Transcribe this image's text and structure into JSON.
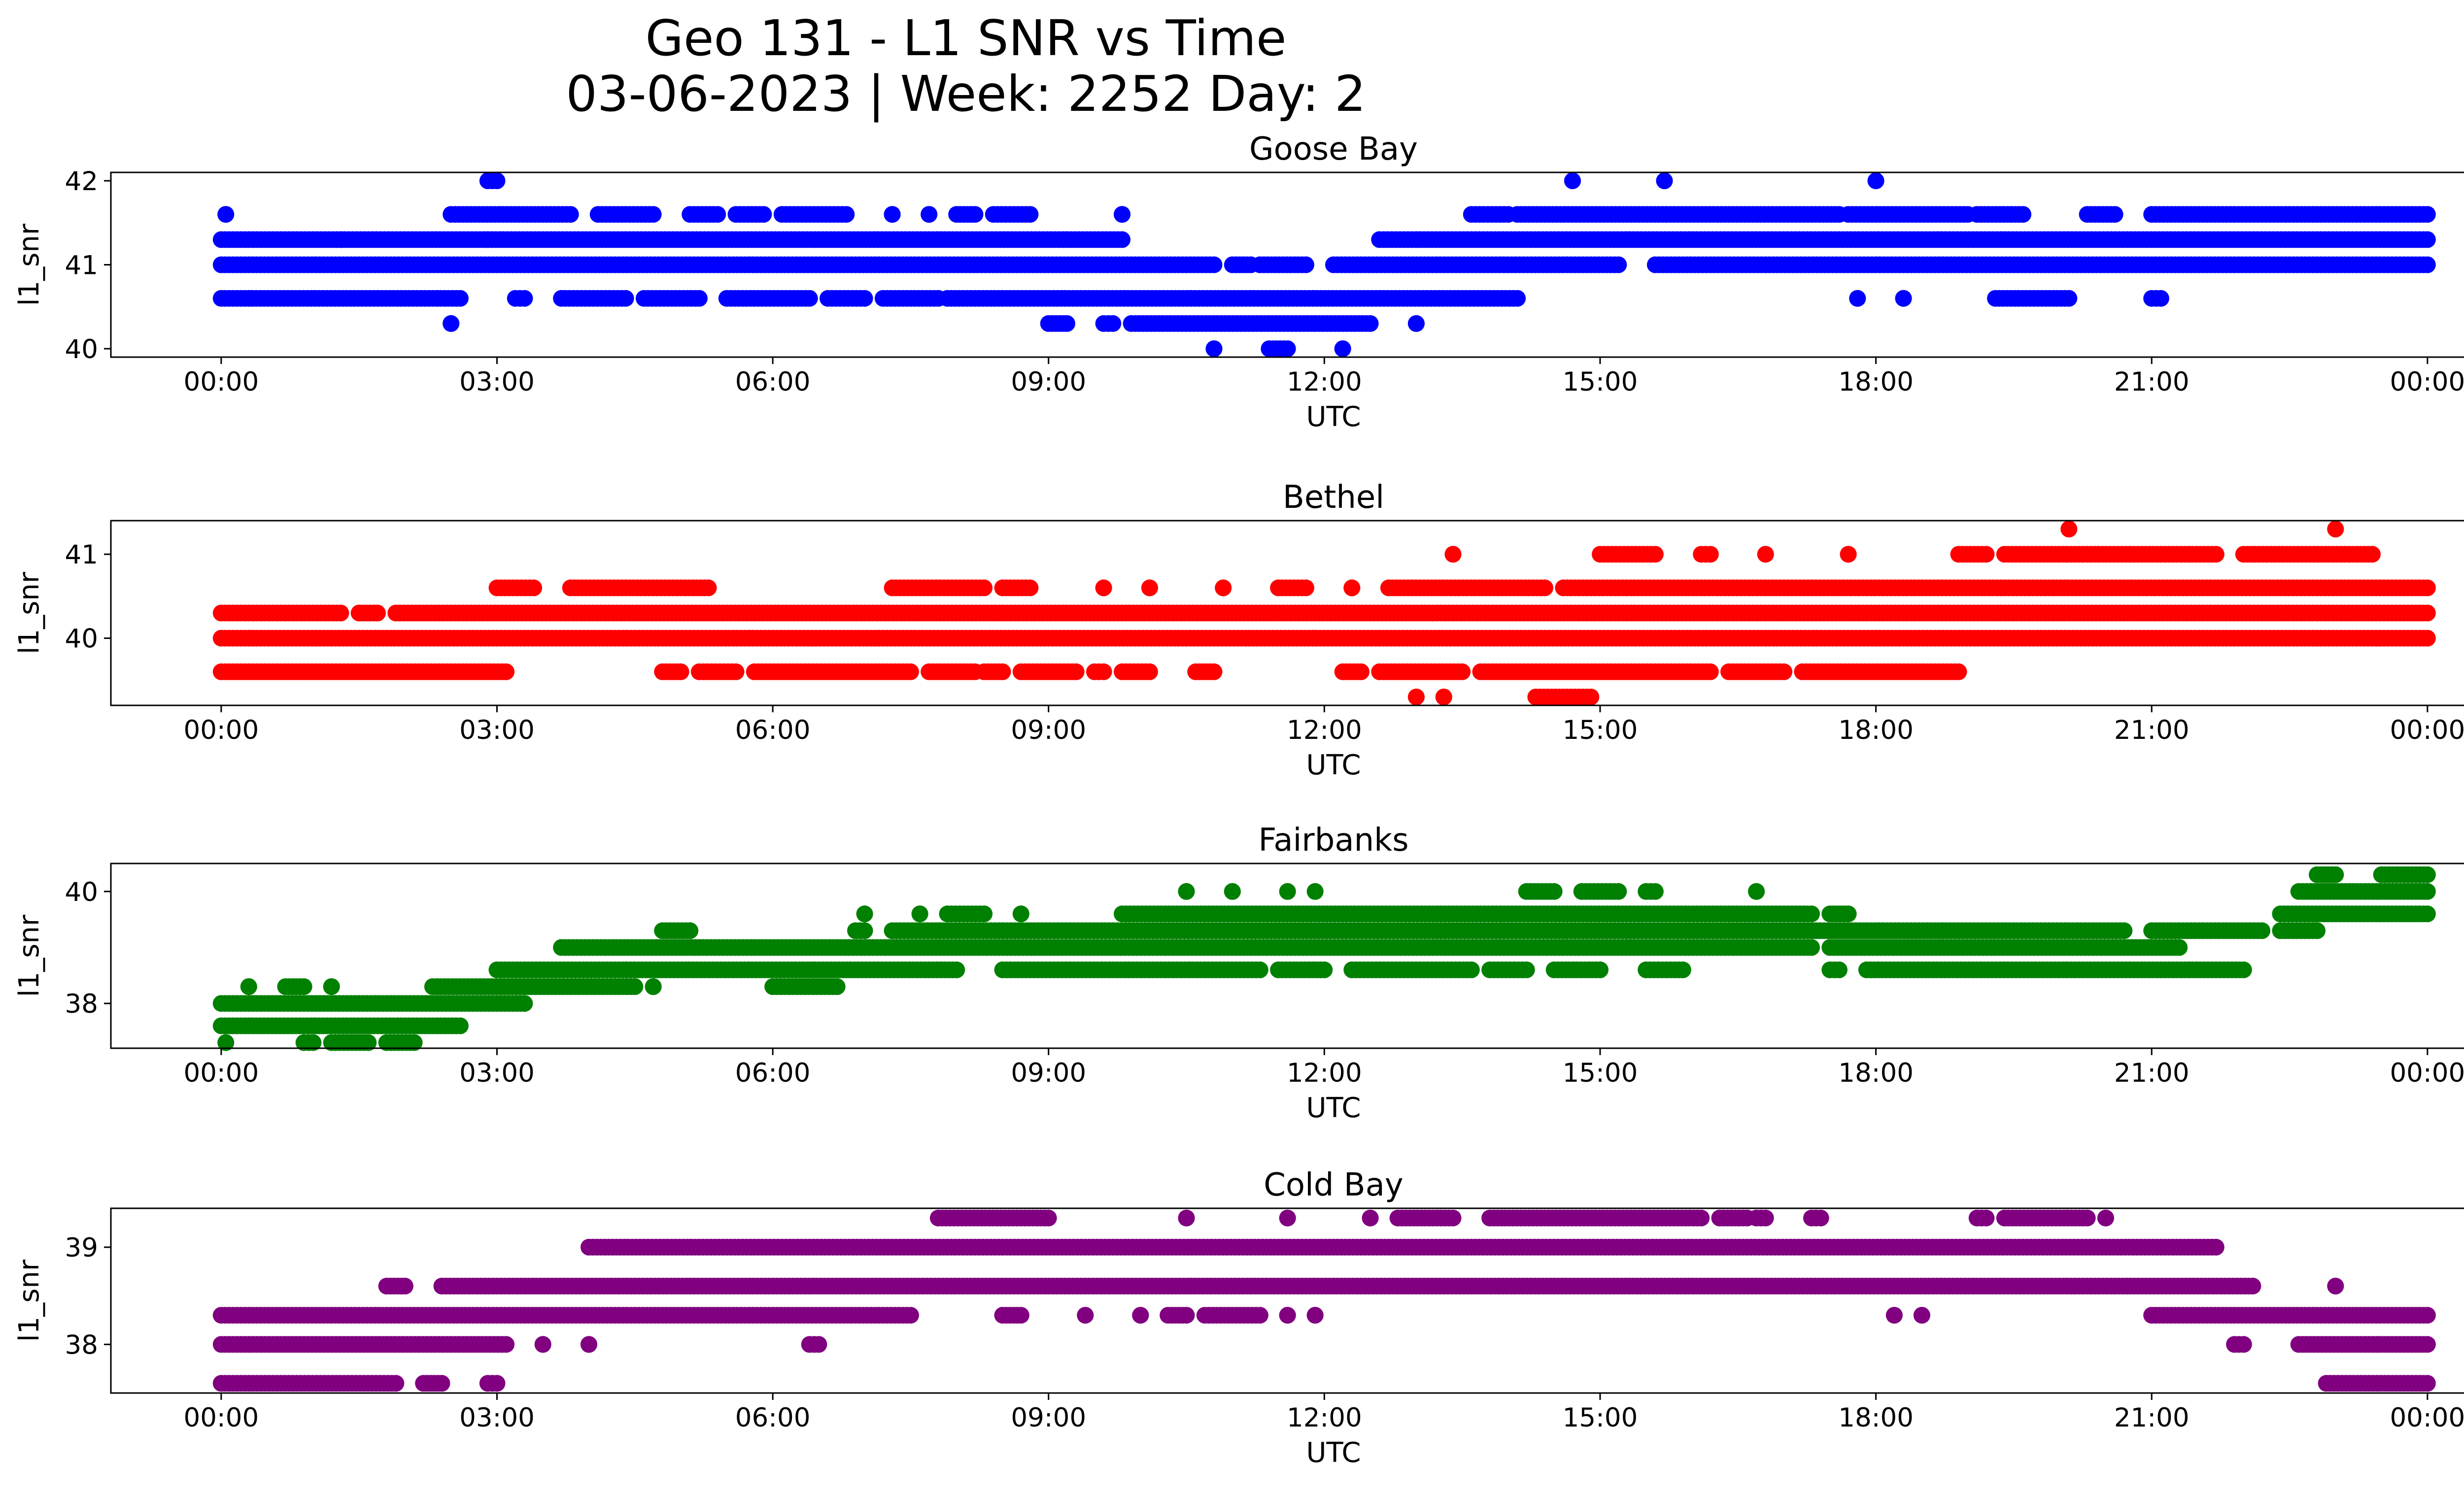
{
  "figure": {
    "title_line1": "Geo 131 - L1 SNR vs Time",
    "title_line2": "03-06-2023 | Week: 2252 Day: 2"
  },
  "chart_data": [
    {
      "type": "scatter",
      "title": "Goose Bay",
      "xlabel": "UTC",
      "ylabel": "l1_snr",
      "color": "#0000ff",
      "xlim_hours": [
        -1.2,
        25.4
      ],
      "ylim": [
        39.9,
        42.1
      ],
      "x_ticks": [
        "00:00",
        "03:00",
        "06:00",
        "09:00",
        "12:00",
        "15:00",
        "18:00",
        "21:00",
        "00:00"
      ],
      "y_ticks": [
        40,
        41,
        42
      ],
      "series": [
        {
          "level": 41.3,
          "segments": [
            [
              0.0,
              1.3
            ],
            [
              1.3,
              2.9
            ],
            [
              2.9,
              9.8
            ],
            [
              12.6,
              13.0
            ],
            [
              13.0,
              24.0
            ]
          ]
        },
        {
          "level": 41.0,
          "segments": [
            [
              0.0,
              10.8
            ],
            [
              11.0,
              11.2
            ],
            [
              11.3,
              11.8
            ],
            [
              12.1,
              15.2
            ],
            [
              15.6,
              24.0
            ]
          ]
        },
        {
          "level": 40.6,
          "segments": [
            [
              0.0,
              2.6
            ],
            [
              3.2,
              3.3
            ],
            [
              3.7,
              4.4
            ],
            [
              4.6,
              5.2
            ],
            [
              5.5,
              6.4
            ],
            [
              6.6,
              7.0
            ],
            [
              7.2,
              7.8
            ],
            [
              7.9,
              14.1
            ],
            [
              17.8,
              17.8
            ],
            [
              18.3,
              18.3
            ],
            [
              19.3,
              20.1
            ],
            [
              21.0,
              21.1
            ]
          ]
        },
        {
          "level": 40.3,
          "segments": [
            [
              2.5,
              2.5
            ],
            [
              9.0,
              9.2
            ],
            [
              9.6,
              9.7
            ],
            [
              9.9,
              12.5
            ],
            [
              13.0,
              13.0
            ]
          ]
        },
        {
          "level": 41.6,
          "segments": [
            [
              0.05,
              0.05
            ],
            [
              2.5,
              3.8
            ],
            [
              4.1,
              4.7
            ],
            [
              5.1,
              5.4
            ],
            [
              5.6,
              5.9
            ],
            [
              6.1,
              6.8
            ],
            [
              7.3,
              7.3
            ],
            [
              7.7,
              7.7
            ],
            [
              8.0,
              8.2
            ],
            [
              8.4,
              8.8
            ],
            [
              9.8,
              9.8
            ],
            [
              13.6,
              14.0
            ],
            [
              14.1,
              17.6
            ],
            [
              17.7,
              19.0
            ],
            [
              19.1,
              19.6
            ],
            [
              20.3,
              20.6
            ],
            [
              21.0,
              24.0
            ]
          ]
        },
        {
          "level": 42.0,
          "segments": [
            [
              2.9,
              3.0
            ],
            [
              14.7,
              14.7
            ],
            [
              15.7,
              15.7
            ],
            [
              18.0,
              18.0
            ]
          ]
        },
        {
          "level": 40.0,
          "segments": [
            [
              10.8,
              10.8
            ],
            [
              11.4,
              11.6
            ],
            [
              12.2,
              12.2
            ]
          ]
        }
      ]
    },
    {
      "type": "scatter",
      "title": "Bethel",
      "xlabel": "UTC",
      "ylabel": "l1_snr",
      "color": "#ff0000",
      "xlim_hours": [
        -1.2,
        25.4
      ],
      "ylim": [
        39.2,
        41.4
      ],
      "x_ticks": [
        "00:00",
        "03:00",
        "06:00",
        "09:00",
        "12:00",
        "15:00",
        "18:00",
        "21:00",
        "00:00"
      ],
      "y_ticks": [
        40,
        41
      ],
      "series": [
        {
          "level": 40.3,
          "segments": [
            [
              0.0,
              1.3
            ],
            [
              1.5,
              1.7
            ],
            [
              1.9,
              24.0
            ]
          ]
        },
        {
          "level": 40.0,
          "segments": [
            [
              0.0,
              24.0
            ]
          ]
        },
        {
          "level": 39.6,
          "segments": [
            [
              0.0,
              3.1
            ],
            [
              4.8,
              5.0
            ],
            [
              5.2,
              5.6
            ],
            [
              5.8,
              7.5
            ],
            [
              7.7,
              8.2
            ],
            [
              8.3,
              8.5
            ],
            [
              8.7,
              9.3
            ],
            [
              9.5,
              9.6
            ],
            [
              9.8,
              10.1
            ],
            [
              10.6,
              10.8
            ],
            [
              12.2,
              12.4
            ],
            [
              12.6,
              13.5
            ],
            [
              13.7,
              16.2
            ],
            [
              16.4,
              17.0
            ],
            [
              17.2,
              18.9
            ]
          ]
        },
        {
          "level": 40.6,
          "segments": [
            [
              3.0,
              3.4
            ],
            [
              3.8,
              5.3
            ],
            [
              7.3,
              8.3
            ],
            [
              8.5,
              8.8
            ],
            [
              9.6,
              9.6
            ],
            [
              10.1,
              10.1
            ],
            [
              10.9,
              10.9
            ],
            [
              11.5,
              11.8
            ],
            [
              12.3,
              12.3
            ],
            [
              12.7,
              14.4
            ],
            [
              14.6,
              24.0
            ]
          ]
        },
        {
          "level": 41.0,
          "segments": [
            [
              13.4,
              13.4
            ],
            [
              15.0,
              15.6
            ],
            [
              16.1,
              16.2
            ],
            [
              16.8,
              16.8
            ],
            [
              17.7,
              17.7
            ],
            [
              18.9,
              19.2
            ],
            [
              19.4,
              21.7
            ],
            [
              22.0,
              23.4
            ]
          ]
        },
        {
          "level": 41.3,
          "segments": [
            [
              20.1,
              20.1
            ],
            [
              23.0,
              23.0
            ]
          ]
        },
        {
          "level": 39.3,
          "segments": [
            [
              13.0,
              13.0
            ],
            [
              13.3,
              13.3
            ],
            [
              14.3,
              14.9
            ]
          ]
        }
      ]
    },
    {
      "type": "scatter",
      "title": "Fairbanks",
      "xlabel": "UTC",
      "ylabel": "l1_snr",
      "color": "#008000",
      "xlim_hours": [
        -1.2,
        25.4
      ],
      "ylim": [
        37.2,
        40.5
      ],
      "x_ticks": [
        "00:00",
        "03:00",
        "06:00",
        "09:00",
        "12:00",
        "15:00",
        "18:00",
        "21:00",
        "00:00"
      ],
      "y_ticks": [
        38,
        40
      ],
      "series": [
        {
          "level": 38.0,
          "segments": [
            [
              0.0,
              3.3
            ]
          ]
        },
        {
          "level": 37.6,
          "segments": [
            [
              0.0,
              2.6
            ]
          ]
        },
        {
          "level": 37.3,
          "segments": [
            [
              0.05,
              0.05
            ],
            [
              0.9,
              1.0
            ],
            [
              1.2,
              1.6
            ],
            [
              1.8,
              2.1
            ]
          ]
        },
        {
          "level": 38.3,
          "segments": [
            [
              0.3,
              0.3
            ],
            [
              0.7,
              0.9
            ],
            [
              1.2,
              1.2
            ],
            [
              2.3,
              4.5
            ],
            [
              4.7,
              4.7
            ],
            [
              6.0,
              6.7
            ]
          ]
        },
        {
          "level": 38.6,
          "segments": [
            [
              3.0,
              8.0
            ],
            [
              8.5,
              11.3
            ],
            [
              11.5,
              12.0
            ],
            [
              12.3,
              13.6
            ],
            [
              13.8,
              14.2
            ],
            [
              14.5,
              15.0
            ],
            [
              15.5,
              15.9
            ],
            [
              17.5,
              17.6
            ],
            [
              17.9,
              22.0
            ]
          ]
        },
        {
          "level": 39.0,
          "segments": [
            [
              3.7,
              17.3
            ],
            [
              17.5,
              21.3
            ]
          ]
        },
        {
          "level": 39.3,
          "segments": [
            [
              4.8,
              5.1
            ],
            [
              6.9,
              7.0
            ],
            [
              7.3,
              20.7
            ],
            [
              21.0,
              22.2
            ],
            [
              22.4,
              22.8
            ]
          ]
        },
        {
          "level": 39.6,
          "segments": [
            [
              7.0,
              7.0
            ],
            [
              7.6,
              7.6
            ],
            [
              7.9,
              8.3
            ],
            [
              8.7,
              8.7
            ],
            [
              9.8,
              17.3
            ],
            [
              17.5,
              17.7
            ],
            [
              22.4,
              24.0
            ]
          ]
        },
        {
          "level": 40.0,
          "segments": [
            [
              10.5,
              10.5
            ],
            [
              11.0,
              11.0
            ],
            [
              11.6,
              11.6
            ],
            [
              11.9,
              11.9
            ],
            [
              14.2,
              14.5
            ],
            [
              14.8,
              15.2
            ],
            [
              15.5,
              15.6
            ],
            [
              16.7,
              16.7
            ],
            [
              22.6,
              24.0
            ]
          ]
        },
        {
          "level": 40.3,
          "segments": [
            [
              22.8,
              23.0
            ],
            [
              23.5,
              24.0
            ]
          ]
        }
      ]
    },
    {
      "type": "scatter",
      "title": "Cold Bay",
      "xlabel": "UTC",
      "ylabel": "l1_snr",
      "color": "#800080",
      "xlim_hours": [
        -1.2,
        25.4
      ],
      "ylim": [
        37.5,
        39.4
      ],
      "x_ticks": [
        "00:00",
        "03:00",
        "06:00",
        "09:00",
        "12:00",
        "15:00",
        "18:00",
        "21:00",
        "00:00"
      ],
      "y_ticks": [
        38,
        39
      ],
      "series": [
        {
          "level": 38.3,
          "segments": [
            [
              0.0,
              7.5
            ],
            [
              8.5,
              8.7
            ],
            [
              9.4,
              9.4
            ],
            [
              10.0,
              10.0
            ],
            [
              10.3,
              10.5
            ],
            [
              10.7,
              11.3
            ],
            [
              11.6,
              11.6
            ],
            [
              11.9,
              11.9
            ],
            [
              18.2,
              18.2
            ],
            [
              18.5,
              18.5
            ],
            [
              21.0,
              24.0
            ]
          ]
        },
        {
          "level": 38.0,
          "segments": [
            [
              0.0,
              3.1
            ],
            [
              3.5,
              3.5
            ],
            [
              4.0,
              4.0
            ],
            [
              6.4,
              6.5
            ],
            [
              21.9,
              22.0
            ],
            [
              22.6,
              24.0
            ]
          ]
        },
        {
          "level": 37.6,
          "segments": [
            [
              0.0,
              1.9
            ],
            [
              2.2,
              2.4
            ],
            [
              2.9,
              3.0
            ],
            [
              22.9,
              24.0
            ]
          ]
        },
        {
          "level": 38.6,
          "segments": [
            [
              1.8,
              2.0
            ],
            [
              2.4,
              22.1
            ],
            [
              23.0,
              23.0
            ]
          ]
        },
        {
          "level": 39.0,
          "segments": [
            [
              4.0,
              21.7
            ]
          ]
        },
        {
          "level": 39.3,
          "segments": [
            [
              7.8,
              9.0
            ],
            [
              10.5,
              10.5
            ],
            [
              11.6,
              11.6
            ],
            [
              12.5,
              12.5
            ],
            [
              12.8,
              13.4
            ],
            [
              13.8,
              16.1
            ],
            [
              16.3,
              16.6
            ],
            [
              16.7,
              16.8
            ],
            [
              17.3,
              17.4
            ],
            [
              19.1,
              19.2
            ],
            [
              19.4,
              20.3
            ],
            [
              20.5,
              20.5
            ]
          ]
        }
      ]
    }
  ]
}
